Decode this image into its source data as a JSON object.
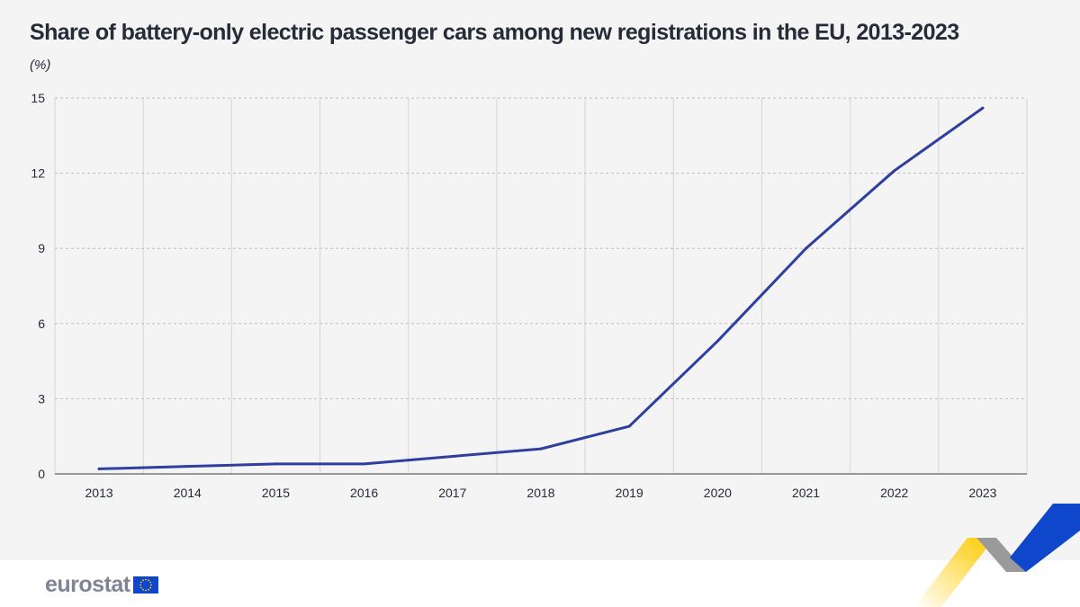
{
  "header": {
    "title": "Share of battery-only electric passenger cars among new registrations in the EU, 2013-2023",
    "unit": "(%)"
  },
  "footer": {
    "logo_text": "eurostat",
    "flag_icon": "eu-flag-icon"
  },
  "colors": {
    "line": "#2e3f9e",
    "background": "#f4f4f4",
    "text": "#262b38",
    "logo": "#7f8597",
    "flag_blue": "#0e47cb",
    "flag_star": "#ffcc00",
    "deco_yellow": "#ffcc00",
    "deco_grey": "#9a9a9a",
    "deco_blue": "#0e47cb"
  },
  "chart_data": {
    "type": "line",
    "title": "Share of battery-only electric passenger cars among new registrations in the EU, 2013-2023",
    "ylabel": "(%)",
    "xlabel": "",
    "categories": [
      "2013",
      "2014",
      "2015",
      "2016",
      "2017",
      "2018",
      "2019",
      "2020",
      "2021",
      "2022",
      "2023"
    ],
    "series": [
      {
        "values": [
          0.2,
          0.3,
          0.4,
          0.4,
          0.7,
          1.0,
          1.9,
          5.3,
          9.0,
          12.1,
          14.6
        ]
      }
    ],
    "ylim": [
      0,
      15
    ],
    "yticks": [
      "0",
      "3",
      "6",
      "9",
      "12",
      "15"
    ],
    "grid": true,
    "legend": "none"
  }
}
